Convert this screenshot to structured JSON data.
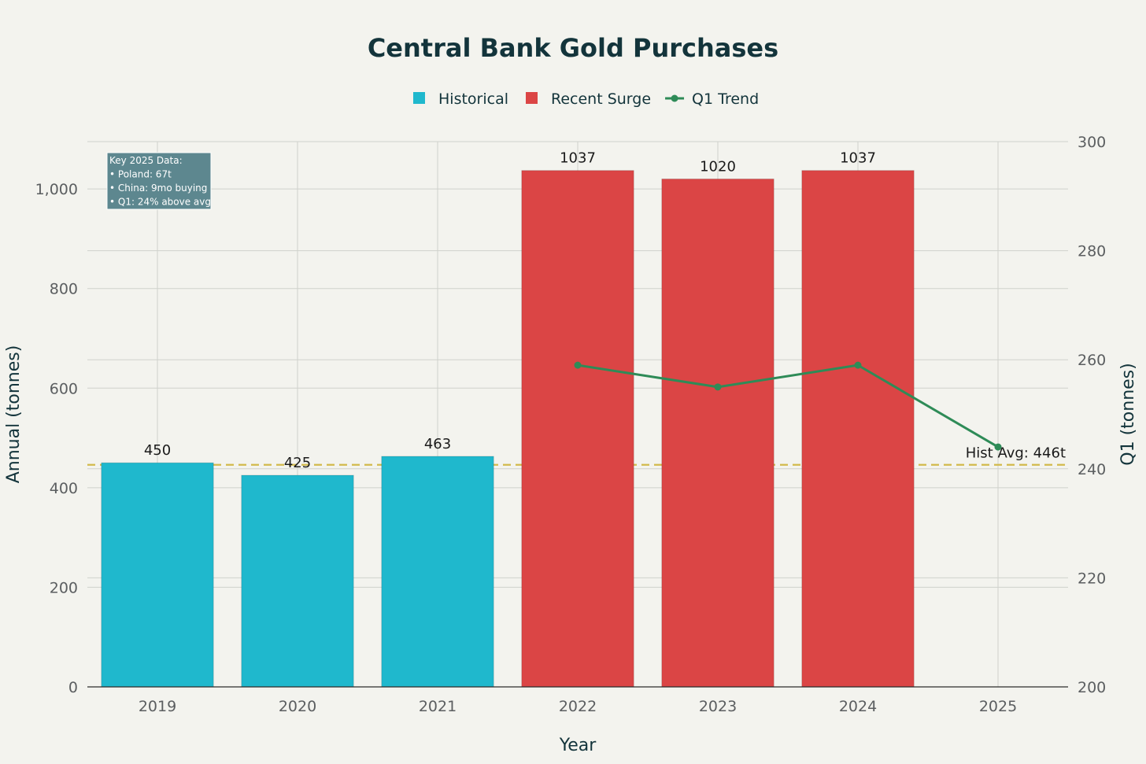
{
  "chart_data": {
    "type": "bar",
    "title": "Central Bank Gold Purchases",
    "xlabel": "Year",
    "ylabel": "Annual (tonnes)",
    "y2label": "Q1 (tonnes)",
    "categories": [
      "2019",
      "2020",
      "2021",
      "2022",
      "2023",
      "2024",
      "2025"
    ],
    "ylim": [
      0,
      1095
    ],
    "y2lim": [
      200,
      300
    ],
    "yticks": [
      0,
      200,
      400,
      600,
      800,
      1000
    ],
    "yticklabels": [
      "0",
      "200",
      "400",
      "600",
      "800",
      "1,000"
    ],
    "y2ticks": [
      200,
      220,
      240,
      260,
      280,
      300
    ],
    "legend_position": "top-center",
    "grid": true,
    "series": [
      {
        "name": "Historical",
        "kind": "bar",
        "color": "#1fb8cd",
        "values": [
          450,
          425,
          463,
          null,
          null,
          null,
          null
        ]
      },
      {
        "name": "Recent Surge",
        "kind": "bar",
        "color": "#db4545",
        "values": [
          null,
          null,
          null,
          1037,
          1020,
          1037,
          null
        ]
      },
      {
        "name": "Q1 Trend",
        "kind": "line",
        "axis": "right",
        "color": "#2e8b57",
        "values": [
          null,
          null,
          null,
          259,
          255,
          259,
          244
        ]
      }
    ],
    "reference_line": {
      "value": 446,
      "label": "Hist Avg: 446t",
      "color": "#d2ba4c"
    },
    "annotation": {
      "lines": [
        "Key 2025 Data:",
        "• Poland: 67t",
        "• China: 9mo buying",
        "• Q1: 24% above avg"
      ],
      "background": "#5d878f"
    }
  }
}
